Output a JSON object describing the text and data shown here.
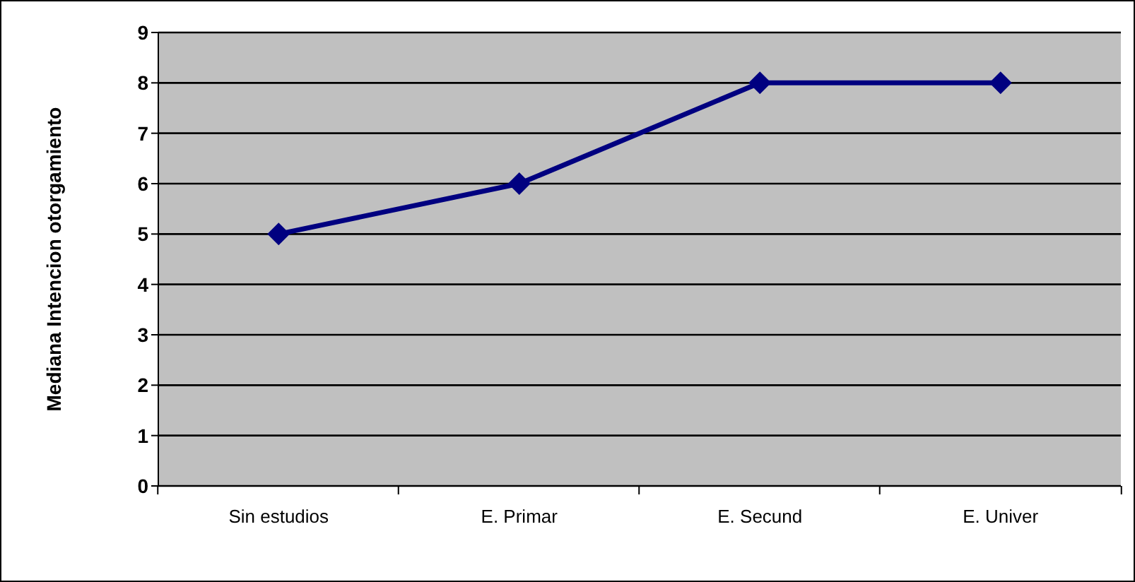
{
  "chart_data": {
    "type": "line",
    "ylabel": "Mediana Intencion otorgamiento",
    "categories": [
      "Sin estudios",
      "E. Primar",
      "E. Secund",
      "E. Univer"
    ],
    "series": [
      {
        "color": "#000080",
        "values": [
          5,
          6,
          8,
          8
        ]
      }
    ],
    "ylim": [
      0,
      9
    ],
    "yticks": [
      0,
      1,
      2,
      3,
      4,
      5,
      6,
      7,
      8,
      9
    ],
    "grid": "y",
    "marker": "diamond",
    "line_style": "solid"
  }
}
